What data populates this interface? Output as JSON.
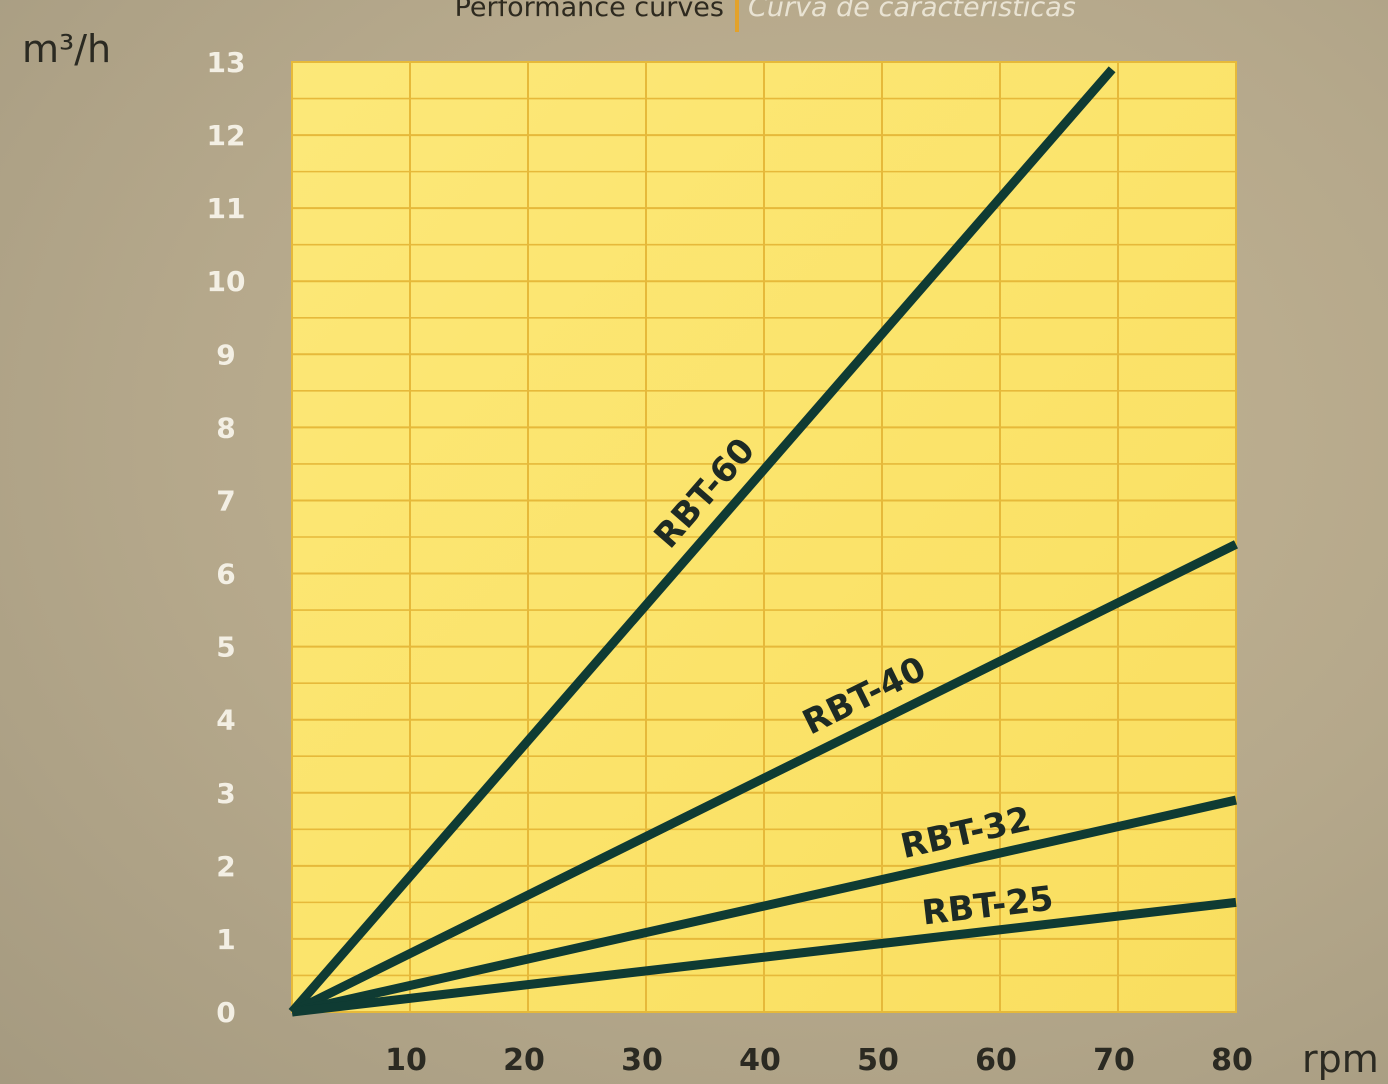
{
  "header": {
    "title_left": "Performance curves",
    "title_right": "Curva de características"
  },
  "colors": {
    "plot_background": "#fbe56a",
    "grid": "#e6b93a",
    "line": "#0f3b33",
    "page_background": "#b8ab8e"
  },
  "chart_data": {
    "type": "line",
    "title": "Performance curves",
    "xlabel": "rpm",
    "ylabel": "m³/h",
    "xlim": [
      0,
      80
    ],
    "ylim": [
      0,
      13
    ],
    "x_ticks": [
      10,
      20,
      30,
      40,
      50,
      60,
      70,
      80
    ],
    "y_ticks": [
      0,
      1,
      2,
      3,
      4,
      5,
      6,
      7,
      8,
      9,
      10,
      11,
      12,
      13
    ],
    "grid": true,
    "legend": "inline labels on lines",
    "series": [
      {
        "name": "RBT-60",
        "x": [
          0,
          69.5
        ],
        "y": [
          0,
          12.9
        ]
      },
      {
        "name": "RBT-40",
        "x": [
          0,
          80
        ],
        "y": [
          0,
          6.4
        ]
      },
      {
        "name": "RBT-32",
        "x": [
          0,
          80
        ],
        "y": [
          0,
          2.9
        ]
      },
      {
        "name": "RBT-25",
        "x": [
          0,
          80
        ],
        "y": [
          0,
          1.5
        ]
      }
    ]
  }
}
